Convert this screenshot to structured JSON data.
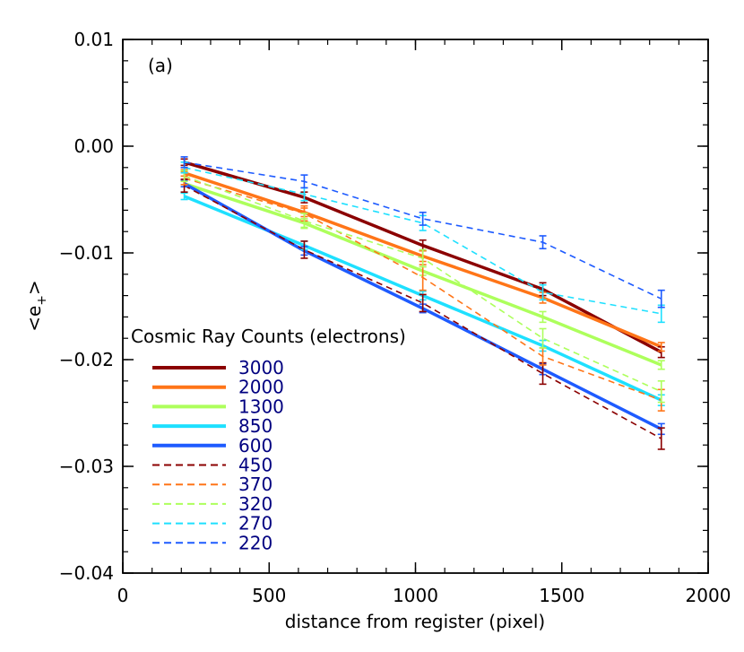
{
  "chart_data": {
    "type": "line",
    "panel_label": "(a)",
    "xlabel": "distance from register (pixel)",
    "ylabel_main": "<e",
    "ylabel_sub": "+",
    "ylabel_end": ">",
    "xlim": [
      0,
      2000
    ],
    "ylim": [
      -0.04,
      0.01
    ],
    "x_ticks": [
      0,
      500,
      1000,
      1500,
      2000
    ],
    "x_tick_labels": [
      "0",
      "500",
      "1000",
      "1500",
      "2000"
    ],
    "y_ticks": [
      0.01,
      0.0,
      -0.01,
      -0.02,
      -0.03,
      -0.04
    ],
    "y_tick_labels": [
      "0.01",
      "0.00",
      "−0.01",
      "−0.02",
      "−0.03",
      "−0.04"
    ],
    "legend_title": "Cosmic Ray Counts (electrons)",
    "legend_placement": "lower-left",
    "legend_label_color": "#000080",
    "x": [
      210,
      620,
      1025,
      1435,
      1840
    ],
    "series": [
      {
        "name": "3000",
        "color": "#8B0000",
        "style": "solid",
        "values": [
          -0.0015,
          -0.0048,
          -0.0093,
          -0.0134,
          -0.0193
        ],
        "errors": [
          0.0003,
          0.0005,
          0.0005,
          0.0006,
          0.0005
        ]
      },
      {
        "name": "2000",
        "color": "#FF7518",
        "style": "solid",
        "values": [
          -0.0025,
          -0.0062,
          -0.0103,
          -0.0142,
          -0.0188
        ],
        "errors": [
          0.0003,
          0.0004,
          0.0005,
          0.0005,
          0.0004
        ]
      },
      {
        "name": "1300",
        "color": "#ADFF5C",
        "style": "solid",
        "values": [
          -0.0035,
          -0.0072,
          -0.0117,
          -0.016,
          -0.0205
        ],
        "errors": [
          0.0003,
          0.0004,
          0.0004,
          0.0005,
          0.0004
        ]
      },
      {
        "name": "850",
        "color": "#1EE0FF",
        "style": "solid",
        "values": [
          -0.0047,
          -0.0093,
          -0.014,
          -0.0187,
          -0.0238
        ],
        "errors": [
          0.0003,
          0.0004,
          0.0004,
          0.0005,
          0.0005
        ]
      },
      {
        "name": "600",
        "color": "#1E5BFF",
        "style": "solid",
        "values": [
          -0.0035,
          -0.0098,
          -0.0152,
          -0.0209,
          -0.0265
        ],
        "errors": [
          0.0003,
          0.0004,
          0.0004,
          0.0005,
          0.0005
        ]
      },
      {
        "name": "450",
        "color": "#8B0000",
        "style": "dashed",
        "values": [
          -0.0037,
          -0.0097,
          -0.0147,
          -0.0213,
          -0.0274
        ],
        "errors": [
          0.0006,
          0.0008,
          0.0008,
          0.001,
          0.001
        ]
      },
      {
        "name": "370",
        "color": "#FF7518",
        "style": "dashed",
        "values": [
          -0.003,
          -0.0063,
          -0.0123,
          -0.0197,
          -0.0238
        ],
        "errors": [
          0.0006,
          0.0007,
          0.0012,
          0.0008,
          0.001
        ]
      },
      {
        "name": "320",
        "color": "#ADFF5C",
        "style": "dashed",
        "values": [
          -0.0028,
          -0.007,
          -0.0105,
          -0.018,
          -0.023
        ],
        "errors": [
          0.0005,
          0.0007,
          0.0008,
          0.0009,
          0.001
        ]
      },
      {
        "name": "270",
        "color": "#1EE0FF",
        "style": "dashed",
        "values": [
          -0.002,
          -0.0045,
          -0.0072,
          -0.0137,
          -0.0157
        ],
        "errors": [
          0.0005,
          0.0006,
          0.0007,
          0.0007,
          0.0008
        ]
      },
      {
        "name": "220",
        "color": "#1E5BFF",
        "style": "dashed",
        "values": [
          -0.0015,
          -0.0033,
          -0.0068,
          -0.009,
          -0.0143
        ],
        "errors": [
          0.0005,
          0.0006,
          0.0006,
          0.0006,
          0.0008
        ]
      }
    ]
  }
}
